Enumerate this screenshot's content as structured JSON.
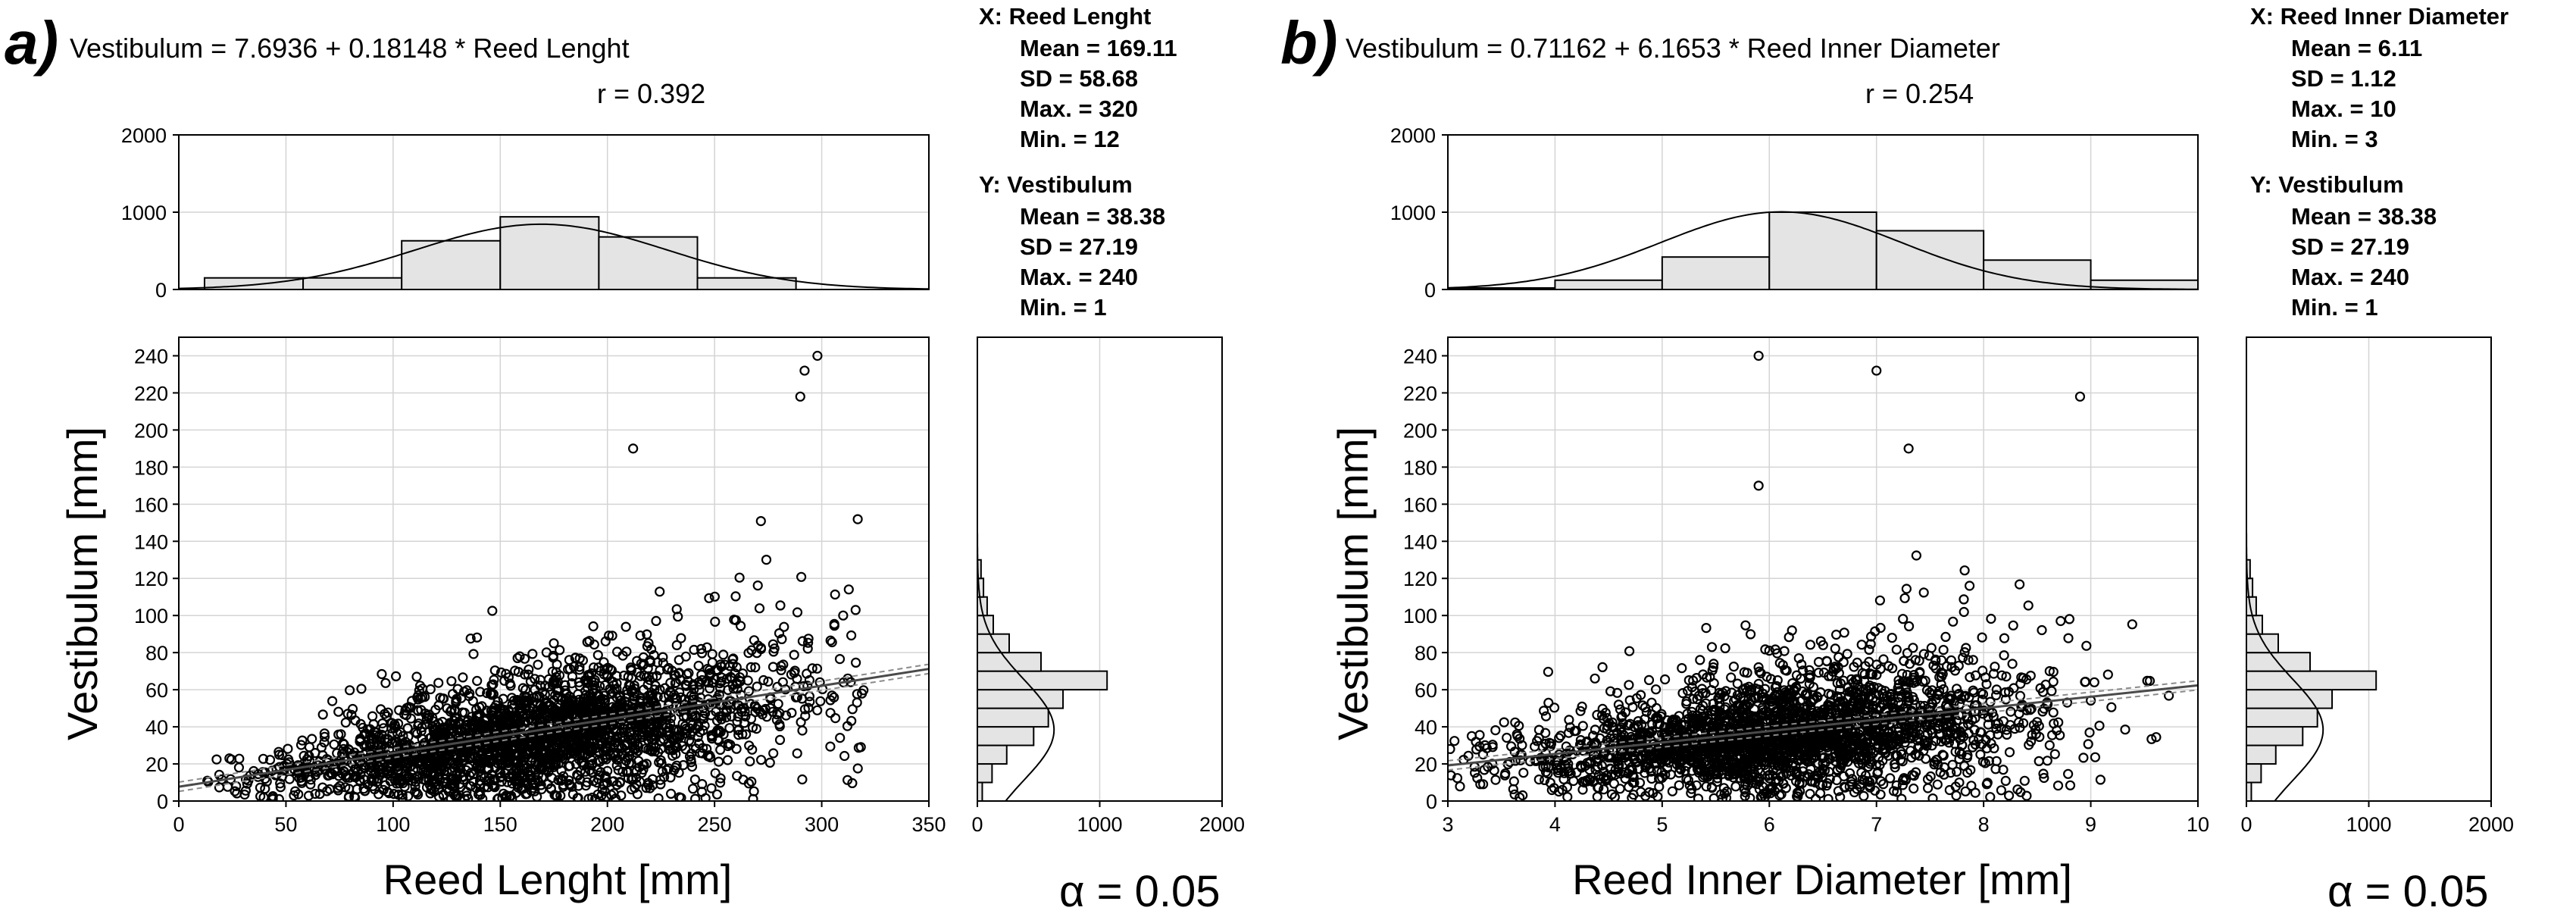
{
  "chart_data": [
    {
      "panel_label": "a)",
      "type": "scatter",
      "title": "Vestibulum = 7.6936 + 0.18148 * Reed Lenght",
      "r_text": "r =  0.392",
      "fit": {
        "intercept": 7.6936,
        "slope": 0.18148,
        "r": 0.392
      },
      "xlabel": "Reed Lenght [mm]",
      "ylabel": "Vestibulum [mm]",
      "xlim": [
        0,
        350
      ],
      "ylim": [
        0,
        250
      ],
      "xticks": [
        "0",
        "50",
        "100",
        "150",
        "200",
        "250",
        "300",
        "350"
      ],
      "yticks": [
        "0",
        "20",
        "40",
        "60",
        "80",
        "100",
        "120",
        "140",
        "160",
        "180",
        "200",
        "220",
        "240"
      ],
      "grid": true,
      "stats_x": {
        "header": "X:  Reed Lenght",
        "lines": [
          "Mean = 169.11",
          "SD = 58.68",
          "Max. = 320",
          "Min. = 12"
        ]
      },
      "stats_y": {
        "header": "Y:  Vestibulum",
        "lines": [
          "Mean = 38.38",
          "SD = 27.19",
          "Max. = 240",
          "Min. = 1"
        ]
      },
      "x_stats": {
        "mean": 169.11,
        "sd": 58.68,
        "min": 12,
        "max": 320
      },
      "y_stats": {
        "mean": 38.38,
        "sd": 27.19,
        "min": 1,
        "max": 240
      },
      "top_histogram": {
        "yticks": [
          "0",
          "1000",
          "2000"
        ],
        "ylim": [
          0,
          2000
        ],
        "bin_starts": [
          12,
          58,
          104,
          150,
          196,
          242
        ],
        "bin_width": 46,
        "values": [
          150,
          150,
          630,
          940,
          680,
          150
        ]
      },
      "right_histogram": {
        "xticks": [
          "0",
          "1000",
          "2000"
        ],
        "xlim": [
          0,
          2000
        ],
        "bin_starts": [
          0,
          10,
          20,
          30,
          40,
          50,
          60,
          70,
          80,
          90,
          100,
          110,
          120
        ],
        "bin_width": 10,
        "values": [
          40,
          120,
          240,
          460,
          580,
          700,
          1060,
          520,
          260,
          130,
          80,
          50,
          30
        ]
      },
      "outliers": [
        [
          298,
          240
        ],
        [
          292,
          232
        ],
        [
          290,
          218
        ],
        [
          212,
          190
        ],
        [
          310,
          100
        ]
      ],
      "n_points": 2600,
      "seed": 11,
      "alpha_label": "α = 0.05"
    },
    {
      "panel_label": "b)",
      "type": "scatter",
      "title": "Vestibulum = 0.71162 + 6.1653 * Reed Inner Diameter",
      "r_text": "r =  0.254",
      "fit": {
        "intercept": 0.71162,
        "slope": 6.1653,
        "r": 0.254
      },
      "xlabel": "Reed Inner Diameter [mm]",
      "ylabel": "Vestibulum [mm]",
      "xlim": [
        3,
        10
      ],
      "ylim": [
        0,
        250
      ],
      "xticks": [
        "3",
        "4",
        "5",
        "6",
        "7",
        "8",
        "9",
        "10"
      ],
      "yticks": [
        "0",
        "20",
        "40",
        "60",
        "80",
        "100",
        "120",
        "140",
        "160",
        "180",
        "200",
        "220",
        "240"
      ],
      "grid": true,
      "stats_x": {
        "header": "X:  Reed Inner Diameter",
        "lines": [
          "Mean = 6.11",
          "SD = 1.12",
          "Max. = 10",
          "Min. = 3"
        ]
      },
      "stats_y": {
        "header": "Y:  Vestibulum",
        "lines": [
          "Mean = 38.38",
          "SD = 27.19",
          "Max. = 240",
          "Min. = 1"
        ]
      },
      "x_stats": {
        "mean": 6.11,
        "sd": 1.12,
        "min": 3,
        "max": 10
      },
      "y_stats": {
        "mean": 38.38,
        "sd": 27.19,
        "min": 1,
        "max": 240
      },
      "top_histogram": {
        "yticks": [
          "0",
          "1000",
          "2000"
        ],
        "ylim": [
          0,
          2000
        ],
        "bin_starts": [
          3,
          4,
          5,
          6,
          7,
          8,
          9
        ],
        "bin_width": 1,
        "values": [
          20,
          120,
          420,
          1000,
          760,
          380,
          120
        ]
      },
      "right_histogram": {
        "xticks": [
          "0",
          "1000",
          "2000"
        ],
        "xlim": [
          0,
          2000
        ],
        "bin_starts": [
          0,
          10,
          20,
          30,
          40,
          50,
          60,
          70,
          80,
          90,
          100,
          110,
          120
        ],
        "bin_width": 10,
        "values": [
          40,
          120,
          240,
          460,
          580,
          700,
          1060,
          520,
          260,
          130,
          80,
          50,
          30
        ]
      },
      "outliers": [
        [
          5.9,
          240
        ],
        [
          7.0,
          232
        ],
        [
          8.9,
          218
        ],
        [
          7.3,
          190
        ],
        [
          5.9,
          170
        ]
      ],
      "n_points": 2600,
      "seed": 23,
      "alpha_label": "α = 0.05"
    }
  ]
}
